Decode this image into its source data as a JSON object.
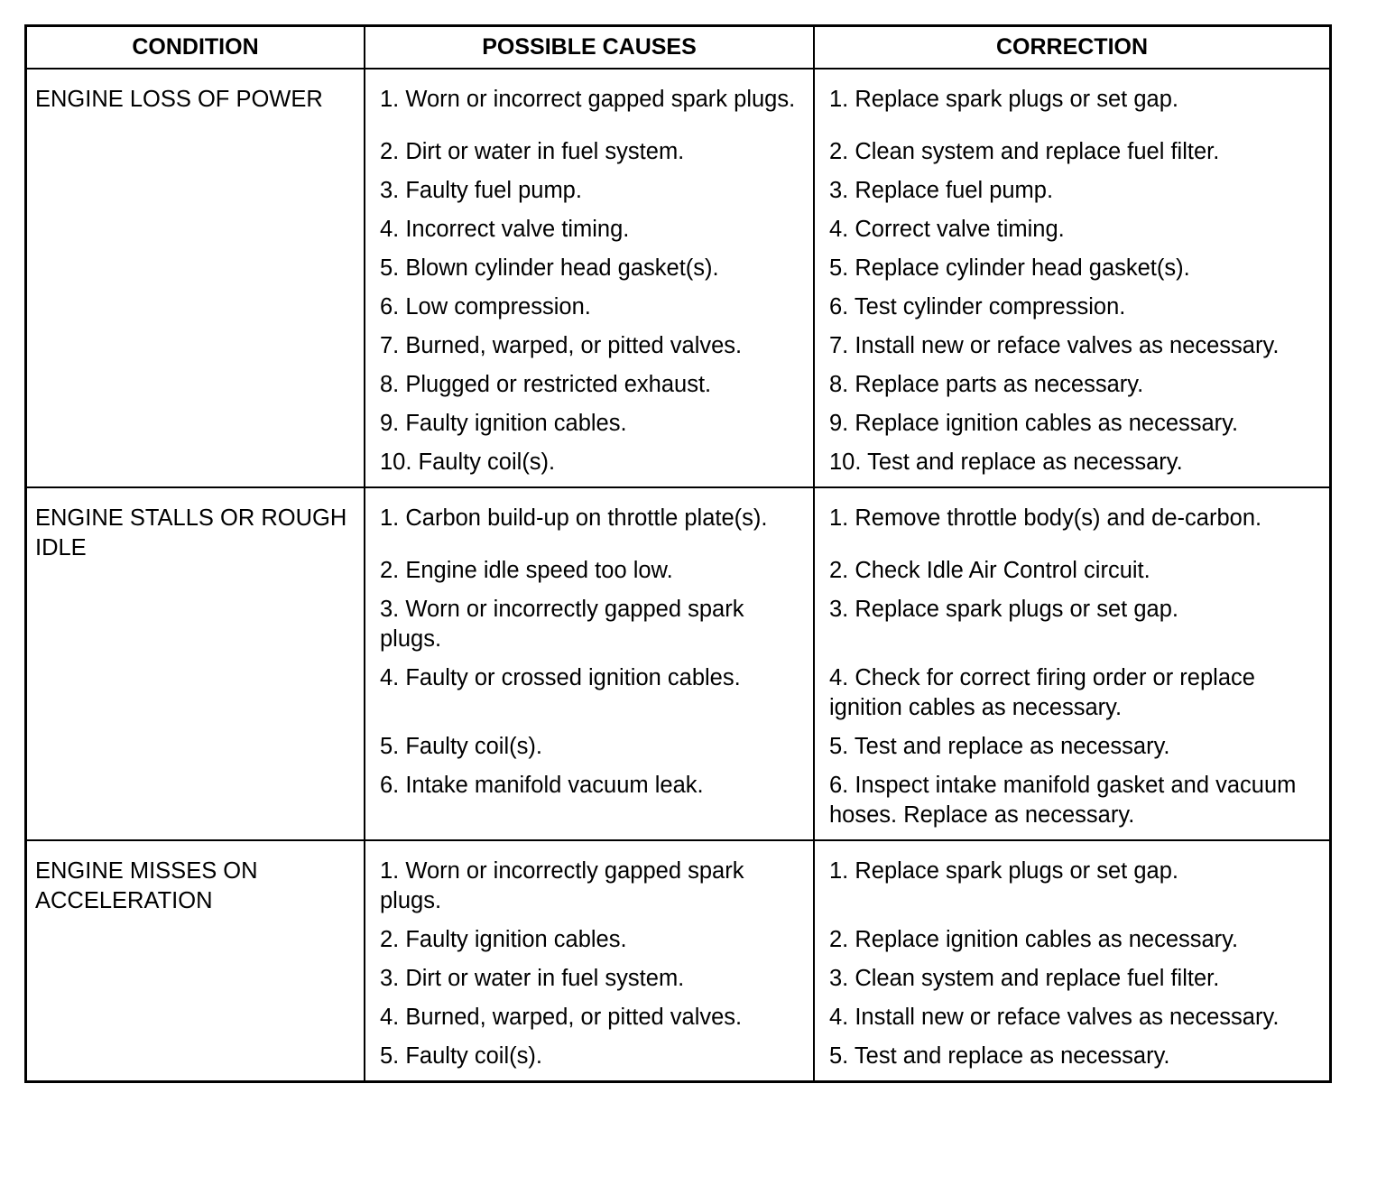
{
  "headers": {
    "condition": "CONDITION",
    "causes": "POSSIBLE CAUSES",
    "correction": "CORRECTION"
  },
  "rows": [
    {
      "condition": "ENGINE LOSS OF POWER",
      "items": [
        {
          "cause": "1. Worn or incorrect gapped spark plugs.",
          "correction": "1. Replace spark plugs or set gap."
        },
        {
          "cause": "2. Dirt or water in fuel system.",
          "correction": "2. Clean system and replace fuel filter."
        },
        {
          "cause": "3. Faulty fuel pump.",
          "correction": "3. Replace fuel pump."
        },
        {
          "cause": "4. Incorrect valve timing.",
          "correction": "4. Correct valve timing."
        },
        {
          "cause": "5. Blown cylinder head gasket(s).",
          "correction": "5. Replace cylinder head gasket(s)."
        },
        {
          "cause": "6. Low compression.",
          "correction": "6. Test cylinder compression."
        },
        {
          "cause": "7. Burned, warped, or pitted valves.",
          "correction": "7. Install new or reface valves as necessary."
        },
        {
          "cause": "8. Plugged or restricted exhaust.",
          "correction": "8. Replace parts as necessary."
        },
        {
          "cause": "9. Faulty ignition cables.",
          "correction": "9. Replace ignition cables as necessary."
        },
        {
          "cause": "10. Faulty coil(s).",
          "correction": "10. Test and replace as necessary."
        }
      ]
    },
    {
      "condition": "ENGINE STALLS OR ROUGH IDLE",
      "items": [
        {
          "cause": "1. Carbon build-up on throttle plate(s).",
          "correction": "1. Remove throttle body(s) and de-carbon."
        },
        {
          "cause": "2. Engine idle speed too low.",
          "correction": "2. Check Idle Air Control circuit."
        },
        {
          "cause": "3. Worn or incorrectly gapped spark plugs.",
          "correction": "3. Replace spark plugs or set gap."
        },
        {
          "cause": "4. Faulty or crossed ignition cables.",
          "correction": "4. Check for correct firing order or replace ignition cables as necessary."
        },
        {
          "cause": "5. Faulty coil(s).",
          "correction": "5. Test and replace as necessary."
        },
        {
          "cause": "6. Intake manifold vacuum leak.",
          "correction": "6. Inspect intake manifold gasket and vacuum hoses. Replace as necessary."
        }
      ]
    },
    {
      "condition": "ENGINE MISSES ON ACCELERATION",
      "items": [
        {
          "cause": "1. Worn or incorrectly gapped spark plugs.",
          "correction": "1. Replace spark plugs or set gap."
        },
        {
          "cause": "2. Faulty ignition cables.",
          "correction": "2. Replace ignition cables as necessary."
        },
        {
          "cause": "3. Dirt or water in fuel system.",
          "correction": "3. Clean system and replace fuel filter."
        },
        {
          "cause": "4. Burned, warped, or pitted valves.",
          "correction": "4. Install new or reface valves as necessary."
        },
        {
          "cause": "5. Faulty coil(s).",
          "correction": "5. Test and replace as necessary."
        }
      ]
    }
  ]
}
